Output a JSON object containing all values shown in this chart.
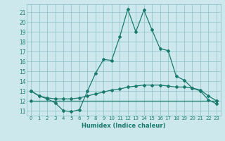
{
  "xlabel": "Humidex (Indice chaleur)",
  "ylabel": "",
  "xlim": [
    -0.5,
    23.5
  ],
  "ylim": [
    10.5,
    21.8
  ],
  "yticks": [
    11,
    12,
    13,
    14,
    15,
    16,
    17,
    18,
    19,
    20,
    21
  ],
  "xticks": [
    0,
    1,
    2,
    3,
    4,
    5,
    6,
    7,
    8,
    9,
    10,
    11,
    12,
    13,
    14,
    15,
    16,
    17,
    18,
    19,
    20,
    21,
    22,
    23
  ],
  "bg_color": "#cce8ec",
  "grid_color": "#88bfc8",
  "line_color": "#1a7a6e",
  "lines": [
    {
      "x": [
        0,
        1,
        2,
        3,
        4,
        5,
        6,
        7,
        8,
        9,
        10,
        11,
        12,
        13,
        14,
        15,
        16,
        17,
        18,
        19,
        20,
        21,
        22,
        23
      ],
      "y": [
        13.0,
        12.5,
        12.2,
        11.8,
        11.0,
        10.9,
        11.1,
        13.0,
        14.8,
        16.2,
        16.1,
        18.5,
        21.3,
        19.0,
        21.2,
        19.2,
        17.3,
        17.1,
        14.5,
        14.1,
        13.3,
        13.0,
        12.1,
        11.7
      ]
    },
    {
      "x": [
        0,
        1,
        2,
        3,
        4,
        5,
        6,
        7,
        8,
        9,
        10,
        11,
        12,
        13,
        14,
        15,
        16,
        17,
        18,
        19,
        20,
        21,
        22,
        23
      ],
      "y": [
        13.0,
        12.5,
        12.3,
        12.2,
        12.2,
        12.2,
        12.3,
        12.5,
        12.7,
        12.9,
        13.1,
        13.2,
        13.4,
        13.5,
        13.6,
        13.6,
        13.6,
        13.5,
        13.4,
        13.4,
        13.3,
        13.1,
        12.5,
        12.0
      ]
    },
    {
      "x": [
        0,
        23
      ],
      "y": [
        12.0,
        12.0
      ]
    }
  ]
}
